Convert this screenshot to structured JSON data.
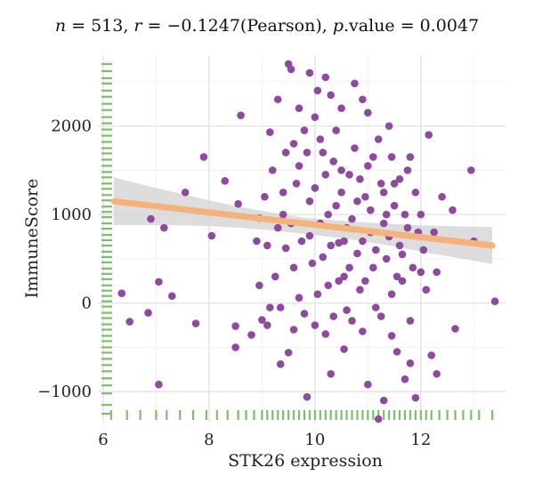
{
  "stats": {
    "n_label": "n",
    "n_value": " = 513, ",
    "r_label": "r",
    "r_value": " = −0.1247(Pearson), ",
    "p_label": "p",
    "p_value": ".value = 0.0047"
  },
  "chart_data": {
    "type": "scatter",
    "title": "n = 513, r = −0.1247(Pearson), p.value = 0.0047",
    "xlabel": "STK26 expression",
    "ylabel": "ImmuneScore",
    "xlim": [
      5.9,
      13.6
    ],
    "ylim": [
      -1350,
      2800
    ],
    "x_ticks": [
      6,
      8,
      10,
      12
    ],
    "y_ticks": [
      -1000,
      0,
      1000,
      2000
    ],
    "x_tick_labels": [
      "6",
      "8",
      "10",
      "12"
    ],
    "y_tick_labels": [
      "−1000",
      "0",
      "1000",
      "2000"
    ],
    "grid": true,
    "point_color": "#8e4a9e",
    "rug_color": "#7cbf6a",
    "fit_color": "#f5b27a",
    "ci_color": "#d2d2d2",
    "fit_line": {
      "x": [
        6.2,
        13.35
      ],
      "y": [
        1150,
        650
      ]
    },
    "confidence_band": {
      "x": [
        6.2,
        6.8,
        7.4,
        8,
        8.6,
        9.2,
        9.8,
        10.4,
        11,
        11.6,
        12.2,
        12.8,
        13.35
      ],
      "upper": [
        1420,
        1330,
        1245,
        1160,
        1085,
        1020,
        965,
        935,
        910,
        890,
        875,
        865,
        860
      ],
      "lower": [
        880,
        880,
        880,
        870,
        850,
        820,
        780,
        740,
        690,
        630,
        560,
        500,
        440
      ]
    },
    "points": [
      [
        6.35,
        110
      ],
      [
        6.5,
        -210
      ],
      [
        6.85,
        -110
      ],
      [
        6.9,
        950
      ],
      [
        7.05,
        -920
      ],
      [
        7.05,
        240
      ],
      [
        7.15,
        850
      ],
      [
        7.3,
        80
      ],
      [
        7.55,
        1250
      ],
      [
        7.75,
        -230
      ],
      [
        7.9,
        1650
      ],
      [
        8.05,
        760
      ],
      [
        8.3,
        1380
      ],
      [
        8.5,
        -260
      ],
      [
        8.5,
        -500
      ],
      [
        8.55,
        1120
      ],
      [
        8.6,
        2120
      ],
      [
        8.8,
        -360
      ],
      [
        8.95,
        960
      ],
      [
        9.0,
        -190
      ],
      [
        9.15,
        1930
      ],
      [
        9.3,
        2300
      ],
      [
        9.4,
        1250
      ],
      [
        9.5,
        2700
      ],
      [
        9.55,
        2640
      ],
      [
        9.6,
        1800
      ],
      [
        9.9,
        2600
      ],
      [
        10.05,
        2400
      ],
      [
        10.2,
        2550
      ],
      [
        10.75,
        2480
      ],
      [
        9.7,
        2200
      ],
      [
        9.8,
        1950
      ],
      [
        10.0,
        2100
      ],
      [
        10.3,
        2350
      ],
      [
        10.5,
        2200
      ],
      [
        10.9,
        2300
      ],
      [
        11.0,
        2150
      ],
      [
        11.4,
        2000
      ],
      [
        12.15,
        1900
      ],
      [
        12.95,
        1500
      ],
      [
        11.8,
        1650
      ],
      [
        12.4,
        1200
      ],
      [
        12.6,
        1050
      ],
      [
        13.0,
        700
      ],
      [
        13.4,
        20
      ],
      [
        12.65,
        -290
      ],
      [
        12.3,
        -800
      ],
      [
        11.8,
        -680
      ],
      [
        11.45,
        -370
      ],
      [
        11.9,
        -1070
      ],
      [
        11.3,
        -1100
      ],
      [
        11.2,
        -1310
      ],
      [
        11.0,
        -920
      ],
      [
        10.55,
        -520
      ],
      [
        10.3,
        -800
      ],
      [
        9.85,
        -1060
      ],
      [
        9.35,
        -690
      ],
      [
        9.5,
        -560
      ],
      [
        9.1,
        -250
      ],
      [
        11.55,
        -550
      ],
      [
        12.2,
        -590
      ],
      [
        11.7,
        -860
      ],
      [
        10.2,
        -350
      ],
      [
        10.9,
        -320
      ],
      [
        9.2,
        1500
      ],
      [
        9.4,
        1000
      ],
      [
        9.45,
        620
      ],
      [
        9.6,
        400
      ],
      [
        9.7,
        60
      ],
      [
        9.8,
        -120
      ],
      [
        9.9,
        760
      ],
      [
        10.0,
        1300
      ],
      [
        10.1,
        900
      ],
      [
        10.15,
        520
      ],
      [
        10.25,
        200
      ],
      [
        10.35,
        1600
      ],
      [
        10.4,
        1100
      ],
      [
        10.45,
        680
      ],
      [
        10.55,
        300
      ],
      [
        10.6,
        -80
      ],
      [
        10.65,
        1450
      ],
      [
        10.7,
        950
      ],
      [
        10.8,
        560
      ],
      [
        10.85,
        150
      ],
      [
        10.95,
        1200
      ],
      [
        11.05,
        800
      ],
      [
        11.1,
        400
      ],
      [
        11.15,
        -50
      ],
      [
        11.25,
        1350
      ],
      [
        11.3,
        900
      ],
      [
        11.35,
        500
      ],
      [
        11.45,
        100
      ],
      [
        11.5,
        1100
      ],
      [
        11.6,
        650
      ],
      [
        11.65,
        250
      ],
      [
        11.75,
        850
      ],
      [
        11.85,
        400
      ],
      [
        12.0,
        1000
      ],
      [
        12.05,
        600
      ],
      [
        12.1,
        150
      ],
      [
        12.25,
        800
      ],
      [
        12.3,
        350
      ],
      [
        9.25,
        300
      ],
      [
        9.35,
        -50
      ],
      [
        9.55,
        900
      ],
      [
        9.65,
        1350
      ],
      [
        9.75,
        700
      ],
      [
        9.85,
        1700
      ],
      [
        9.95,
        450
      ],
      [
        10.05,
        100
      ],
      [
        10.1,
        1850
      ],
      [
        10.2,
        1450
      ],
      [
        10.3,
        650
      ],
      [
        10.4,
        1950
      ],
      [
        10.45,
        250
      ],
      [
        10.5,
        1500
      ],
      [
        10.6,
        850
      ],
      [
        10.65,
        400
      ],
      [
        10.75,
        1750
      ],
      [
        10.8,
        1150
      ],
      [
        10.9,
        700
      ],
      [
        11.0,
        1550
      ],
      [
        11.05,
        1050
      ],
      [
        11.15,
        600
      ],
      [
        11.2,
        1850
      ],
      [
        11.3,
        1250
      ],
      [
        11.4,
        750
      ],
      [
        11.45,
        1650
      ],
      [
        11.55,
        300
      ],
      [
        11.6,
        1400
      ],
      [
        11.7,
        1000
      ],
      [
        11.8,
        -200
      ],
      [
        11.9,
        1250
      ],
      [
        12.0,
        350
      ],
      [
        8.9,
        700
      ],
      [
        8.95,
        200
      ],
      [
        9.05,
        1200
      ],
      [
        9.1,
        650
      ],
      [
        9.15,
        -50
      ],
      [
        9.3,
        850
      ],
      [
        9.45,
        1700
      ],
      [
        9.6,
        -300
      ],
      [
        9.7,
        1550
      ],
      [
        9.9,
        1150
      ],
      [
        10.0,
        -250
      ],
      [
        10.15,
        1700
      ],
      [
        10.25,
        1000
      ],
      [
        10.35,
        -150
      ],
      [
        10.5,
        1250
      ],
      [
        10.55,
        700
      ],
      [
        10.7,
        -200
      ],
      [
        10.85,
        1400
      ],
      [
        10.95,
        250
      ],
      [
        11.1,
        1650
      ],
      [
        11.25,
        -150
      ],
      [
        11.35,
        1000
      ],
      [
        11.5,
        1350
      ],
      [
        11.65,
        550
      ],
      [
        11.75,
        1500
      ],
      [
        11.95,
        800
      ]
    ],
    "rug_x": [
      6.15,
      6.45,
      6.7,
      7.0,
      7.2,
      7.45,
      7.7,
      7.95,
      8.15,
      8.35,
      8.55,
      8.7,
      8.85,
      9.0,
      9.1,
      9.2,
      9.3,
      9.4,
      9.5,
      9.6,
      9.7,
      9.8,
      9.9,
      10.0,
      10.1,
      10.2,
      10.3,
      10.4,
      10.5,
      10.6,
      10.7,
      10.8,
      10.9,
      11.0,
      11.1,
      11.2,
      11.3,
      11.4,
      11.5,
      11.6,
      11.7,
      11.8,
      11.9,
      12.0,
      12.1,
      12.2,
      12.35,
      12.5,
      12.65,
      12.8,
      12.95,
      13.1,
      13.35
    ],
    "rug_y": [
      2700,
      2620,
      2540,
      2480,
      2400,
      2330,
      2250,
      2180,
      2100,
      2030,
      1960,
      1890,
      1820,
      1750,
      1690,
      1620,
      1550,
      1480,
      1420,
      1350,
      1290,
      1220,
      1160,
      1090,
      1030,
      970,
      900,
      840,
      770,
      710,
      650,
      580,
      520,
      460,
      390,
      330,
      270,
      200,
      140,
      80,
      20,
      -40,
      -110,
      -170,
      -240,
      -300,
      -370,
      -430,
      -500,
      -560,
      -630,
      -700,
      -770,
      -850,
      -930,
      -1020,
      -1150,
      -1250
    ]
  }
}
